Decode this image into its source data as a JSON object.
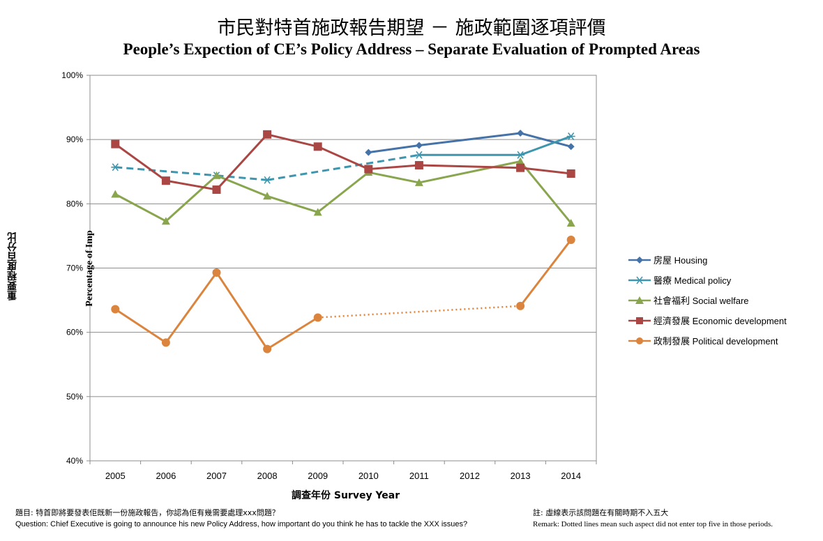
{
  "chart_data": {
    "type": "line",
    "title": "市民對特首施政報告期望 － 施政範圍逐項評價",
    "subtitle": "People’s Expection of CE’s Policy Address – Separate Evaluation of Prompted Areas",
    "ylabel_zh": "重要程度百分比",
    "ylabel_en": "Percentage of Imp",
    "xlabel": "調查年份 Survey Year",
    "ylim": [
      40,
      100
    ],
    "yticks": [
      "40%",
      "50%",
      "60%",
      "70%",
      "80%",
      "90%",
      "100%"
    ],
    "categories": [
      "2005",
      "2006",
      "2007",
      "2008",
      "2009",
      "2010",
      "2011",
      "2012",
      "2013",
      "2014"
    ],
    "grid": "horizontal",
    "legend_position": "right",
    "series": [
      {
        "name": "房屋 Housing",
        "color": "#4572A7",
        "marker": "diamond",
        "values": [
          null,
          null,
          null,
          null,
          null,
          88.0,
          89.1,
          null,
          91.0,
          88.9
        ],
        "dashed_segments": []
      },
      {
        "name": "醫療 Medical policy",
        "color": "#3D96AE",
        "marker": "asterisk",
        "values": [
          85.7,
          null,
          84.4,
          83.7,
          null,
          null,
          87.6,
          null,
          87.6,
          90.5
        ],
        "dashed_segments": [
          [
            0,
            2
          ],
          [
            2,
            3
          ],
          [
            3,
            6
          ]
        ]
      },
      {
        "name": "社會福利 Social welfare",
        "color": "#89A54E",
        "marker": "triangle",
        "values": [
          81.5,
          77.3,
          84.4,
          81.2,
          78.7,
          84.9,
          83.3,
          null,
          86.6,
          77.0
        ],
        "dashed_segments": []
      },
      {
        "name": "經濟發展 Economic development",
        "color": "#AA4643",
        "marker": "square",
        "values": [
          89.3,
          83.6,
          82.2,
          90.8,
          88.9,
          85.4,
          86.0,
          null,
          85.6,
          84.7
        ],
        "dashed_segments": []
      },
      {
        "name": "政制發展 Political development",
        "color": "#DB843D",
        "marker": "circle",
        "values": [
          63.6,
          58.4,
          69.3,
          57.4,
          62.3,
          null,
          null,
          null,
          64.1,
          74.4
        ],
        "dotted_segments": [
          [
            4,
            8
          ]
        ]
      }
    ]
  },
  "footnotes": {
    "question_zh": "題目: 特首即將要發表佢既新一份施政報告，你認為佢有幾需要處理xxx問題？",
    "question_en": "Question: Chief Executive is going to announce his new Policy Address, how important do you think he has to tackle the XXX issues?",
    "remark_zh": "註: 虛線表示該問題在有關時期不入五大",
    "remark_en": "Remark:  Dotted lines mean such aspect did not enter top five in those periods."
  }
}
